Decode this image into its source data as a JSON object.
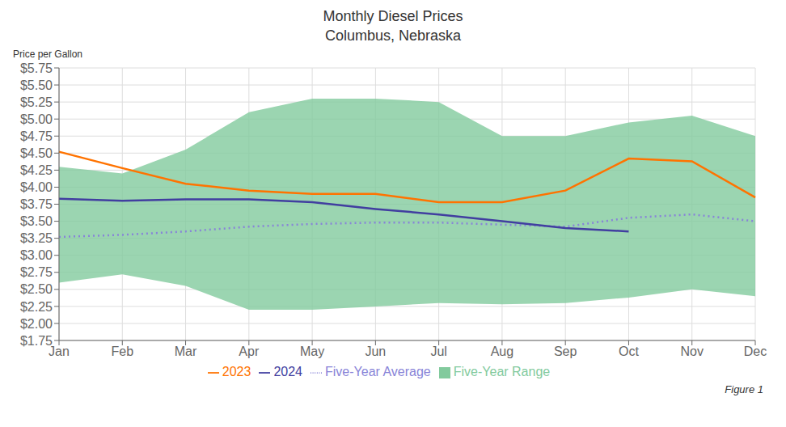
{
  "chart_data": {
    "type": "line",
    "title": "Monthly Diesel Prices",
    "subtitle": "Columbus, Nebraska",
    "ylabel": "Price per Gallon",
    "annotations": [
      "Figure 1"
    ],
    "categories": [
      "Jan",
      "Feb",
      "Mar",
      "Apr",
      "May",
      "Jun",
      "Jul",
      "Aug",
      "Sep",
      "Oct",
      "Nov",
      "Dec"
    ],
    "series": [
      {
        "name": "Five-Year Range",
        "type": "area_range",
        "lower": [
          2.6,
          2.72,
          2.55,
          2.2,
          2.2,
          2.25,
          2.3,
          2.28,
          2.3,
          2.38,
          2.5,
          2.4
        ],
        "upper": [
          4.3,
          4.2,
          4.55,
          5.1,
          5.3,
          5.3,
          5.25,
          4.75,
          4.75,
          4.95,
          5.05,
          4.75
        ]
      },
      {
        "name": "Five-Year Average",
        "type": "line",
        "line_style": "dotted",
        "values": [
          3.27,
          3.3,
          3.35,
          3.42,
          3.46,
          3.48,
          3.48,
          3.45,
          3.42,
          3.55,
          3.6,
          3.5
        ]
      },
      {
        "name": "2023",
        "type": "line",
        "line_style": "solid",
        "values": [
          4.52,
          4.28,
          4.05,
          3.95,
          3.9,
          3.9,
          3.78,
          3.78,
          3.95,
          4.42,
          4.38,
          3.85
        ]
      },
      {
        "name": "2024",
        "type": "line",
        "line_style": "solid",
        "values": [
          3.83,
          3.8,
          3.82,
          3.82,
          3.78,
          3.68,
          3.6,
          3.5,
          3.4,
          3.35,
          null,
          null
        ]
      }
    ],
    "ylim": [
      1.75,
      5.75
    ],
    "yticks": [
      {
        "value": 1.75,
        "label": "$1.75"
      },
      {
        "value": 2.0,
        "label": "$2.00"
      },
      {
        "value": 2.25,
        "label": "$2.25"
      },
      {
        "value": 2.5,
        "label": "$2.50"
      },
      {
        "value": 2.75,
        "label": "$2.75"
      },
      {
        "value": 3.0,
        "label": "$3.00"
      },
      {
        "value": 3.25,
        "label": "$3.25"
      },
      {
        "value": 3.5,
        "label": "$3.50"
      },
      {
        "value": 3.75,
        "label": "$3.75"
      },
      {
        "value": 4.0,
        "label": "$4.00"
      },
      {
        "value": 4.25,
        "label": "$4.25"
      },
      {
        "value": 4.5,
        "label": "$4.50"
      },
      {
        "value": 4.75,
        "label": "$4.75"
      },
      {
        "value": 5.0,
        "label": "$5.00"
      },
      {
        "value": 5.25,
        "label": "$5.25"
      },
      {
        "value": 5.5,
        "label": "$5.50"
      },
      {
        "value": 5.75,
        "label": "$5.75"
      }
    ],
    "grid": true,
    "legend": "bottom"
  }
}
